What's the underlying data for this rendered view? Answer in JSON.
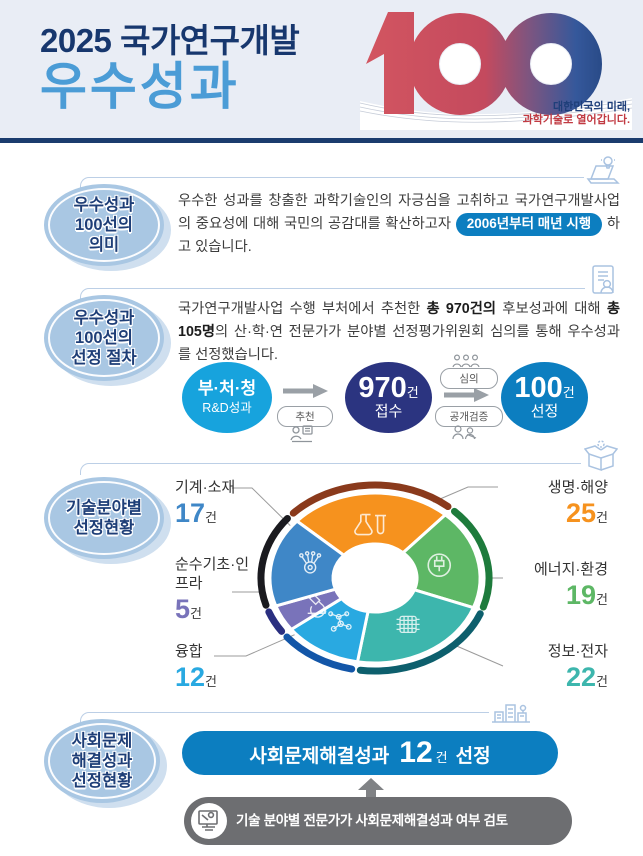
{
  "header": {
    "title_line1": "2025 국가연구개발",
    "title_line2": "우수성과",
    "logo_number": "100",
    "tagline_line1": "대한민국의 미래,",
    "tagline_line2": "과학기술로 열어갑니다.",
    "colors": {
      "navy": "#1b3c6e",
      "title_blue": "#4b9cd6",
      "logo_red": "#c84a58",
      "logo_blue": "#1d3d74"
    }
  },
  "sections": {
    "meaning": {
      "badge_lines": [
        "우수성과",
        "100선의",
        "의미"
      ],
      "icon": "laptop-idea-icon",
      "paragraph_before": "우수한 성과를 창출한 과학기술인의 자긍심을 고취하고 국가연구개발사업의 중요성에 대해 국민의 공감대를 확산하고자 ",
      "highlight_pill": "2006년부터 매년 시행",
      "paragraph_after": " 하고 있습니다."
    },
    "process": {
      "badge_lines": [
        "우수성과",
        "100선의",
        "선정 절차"
      ],
      "icon": "report-icon",
      "paragraph": [
        {
          "t": "국가연구개발사업 수행 부처에서 추천한 ",
          "b": false
        },
        {
          "t": "총 970건의",
          "b": true
        },
        {
          "t": " 후보성과에 대해 ",
          "b": false
        },
        {
          "t": "총 105명",
          "b": true
        },
        {
          "t": "의 산·학·연 전문가가 분야별 선정평가위원회 심의를 통해 우수성과를 선정했습니다.",
          "b": false
        }
      ],
      "flow": {
        "step1": {
          "line1": "부·처·청",
          "line2": "R&D성과",
          "color": "#17a3dd"
        },
        "arrow1_label": "추천",
        "arrow1_icon": "stamp-person-icon",
        "step2": {
          "number": "970",
          "unit": "건",
          "label": "접수",
          "color": "#2b3480"
        },
        "arrow2_top_label": "심의",
        "arrow2_top_icon": "people-3-icon",
        "arrow2_bottom_label": "공개검증",
        "arrow2_bottom_icon": "people-2-icon",
        "step3": {
          "number": "100",
          "unit": "건",
          "label": "선정",
          "color": "#0c7ec0"
        }
      }
    },
    "fields": {
      "badge_lines": [
        "기술분야별",
        "선정현황"
      ],
      "icon": "openbox-icon"
    },
    "social": {
      "badge_lines": [
        "사회문제",
        "해결성과",
        "선정현황"
      ],
      "icon": "buildings-icon",
      "banner": {
        "prefix": "사회문제해결성과",
        "number": "12",
        "unit": "건",
        "suffix": "선정",
        "color": "#0c7ec0"
      },
      "note": "기술 분야별 전문가가 사회문제해결성과 여부 검토",
      "note_icon": "computer-person-icon"
    }
  },
  "chart_data": {
    "type": "pie",
    "donut": true,
    "title": "기술분야별 선정현황",
    "unit": "건",
    "total": 100,
    "start_angle_deg": -48,
    "clockwise": true,
    "legend_position": "around",
    "slices": [
      {
        "label": "생명·해양",
        "value": 25,
        "color": "#f6921e",
        "ring_color": "#8a3a1c",
        "icon": "flask-icon"
      },
      {
        "label": "에너지·환경",
        "value": 19,
        "color": "#5db765",
        "ring_color": "#1e7b3c",
        "icon": "plug-icon"
      },
      {
        "label": "정보·전자",
        "value": 22,
        "color": "#3db6ad",
        "ring_color": "#0d5f6d",
        "icon": "chip-icon"
      },
      {
        "label": "융합",
        "value": 12,
        "color": "#29a9e1",
        "ring_color": "#1356a8",
        "icon": "molecule-icon"
      },
      {
        "label": "순수기초·인프라",
        "value": 5,
        "color": "#7973ba",
        "ring_color": "#2a2f80",
        "icon": "microscope-icon"
      },
      {
        "label": "기계·소재",
        "value": 17,
        "color": "#3f87c7",
        "ring_color": "#1a1a1f",
        "icon": "gear-network-icon"
      }
    ]
  }
}
